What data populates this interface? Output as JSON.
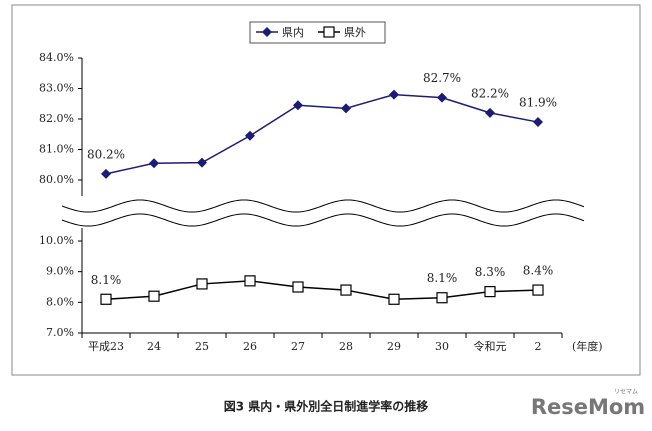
{
  "chart_data": [
    {
      "type": "line",
      "ylim": [
        80,
        84
      ],
      "yticks": [
        {
          "value": 80,
          "label": "80.0%"
        },
        {
          "value": 81,
          "label": "81.0%"
        },
        {
          "value": 82,
          "label": "82.0%"
        },
        {
          "value": 83,
          "label": "83.0%"
        },
        {
          "value": 84,
          "label": "84.0%"
        }
      ],
      "series": [
        {
          "name": "県内",
          "color": "#1b1b78",
          "marker": "diamond",
          "values": [
            80.2,
            80.55,
            80.57,
            81.45,
            82.45,
            82.35,
            82.8,
            82.7,
            82.2,
            81.9
          ],
          "value_labels": [
            "80.2%",
            null,
            null,
            null,
            null,
            null,
            null,
            "82.7%",
            "82.2%",
            "81.9%"
          ]
        }
      ]
    },
    {
      "type": "line",
      "ylim": [
        7,
        10
      ],
      "yticks": [
        {
          "value": 7,
          "label": "7.0%"
        },
        {
          "value": 8,
          "label": "8.0%"
        },
        {
          "value": 9,
          "label": "9.0%"
        },
        {
          "value": 10,
          "label": "10.0%"
        }
      ],
      "categories": [
        "平成23",
        "24",
        "25",
        "26",
        "27",
        "28",
        "29",
        "30",
        "令和元",
        "2"
      ],
      "x_label": "(年度)",
      "series": [
        {
          "name": "県外",
          "color": "#000000",
          "marker": "square",
          "values": [
            8.1,
            8.2,
            8.6,
            8.7,
            8.5,
            8.4,
            8.1,
            8.15,
            8.35,
            8.4
          ],
          "value_labels": [
            "8.1%",
            null,
            null,
            null,
            null,
            null,
            null,
            "8.1%",
            "8.3%",
            "8.4%"
          ]
        }
      ]
    }
  ],
  "caption": "図3  県内・県外別全日制進学率の推移",
  "watermark": "ReseMom",
  "watermark_sub": "リセマム"
}
